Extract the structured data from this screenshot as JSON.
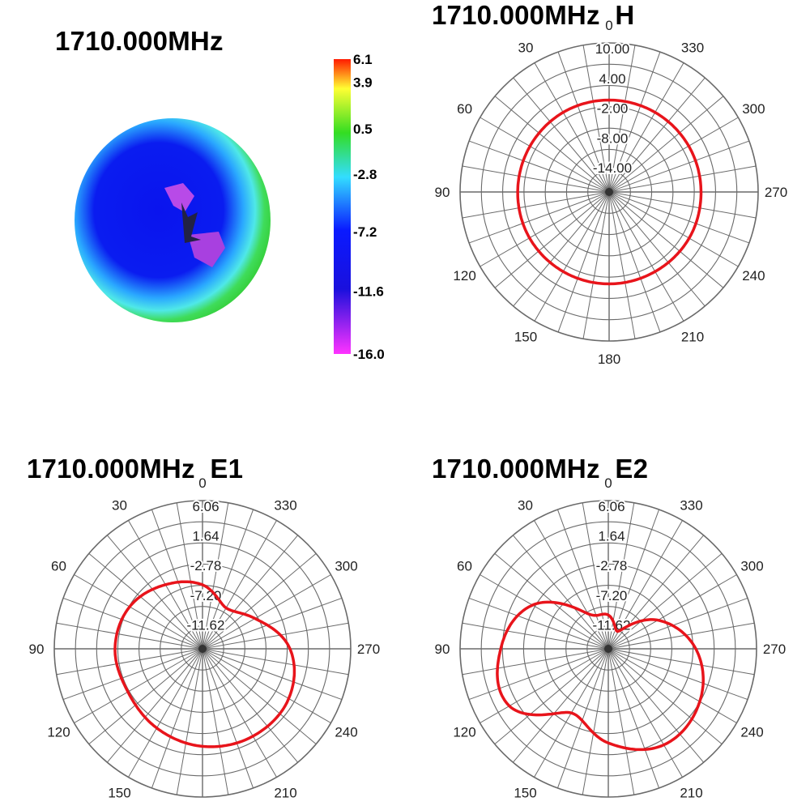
{
  "chart_data": [
    {
      "type": "heatmap",
      "title": "1710.000MHz",
      "colorbar": {
        "ticks": [
          "6.1",
          "3.9",
          "0.5",
          "-2.8",
          "-7.2",
          "-11.6",
          "-16.0"
        ],
        "range": [
          -16.0,
          6.1
        ],
        "colors": [
          "#ff2200",
          "#ffff33",
          "#33dd33",
          "#33ddff",
          "#0022ff",
          "#2200cc",
          "#ff33ff"
        ]
      }
    },
    {
      "type": "line",
      "title": "1710.000MHz  H",
      "angle_labels": [
        "180",
        "210",
        "240",
        "270",
        "300",
        "330",
        "0",
        "30",
        "60",
        "90",
        "120",
        "150"
      ],
      "radial_labels": [
        "10.00",
        "4.00",
        "-2.00",
        "-8.00",
        "-14.00"
      ],
      "rlim": [
        -20,
        10
      ],
      "x": [
        0,
        30,
        60,
        90,
        120,
        150,
        180,
        210,
        240,
        270,
        300,
        330,
        360
      ],
      "series": [
        {
          "values": [
            -1.5,
            -1.5,
            -1.6,
            -1.6,
            -1.5,
            -1.5,
            -1.5,
            -1.5,
            -1.4,
            -1.5,
            -1.5,
            -1.5,
            -1.5
          ],
          "color": "#e8141b"
        }
      ]
    },
    {
      "type": "line",
      "title": "1710.000MHz  E1",
      "angle_labels": [
        "180",
        "210",
        "240",
        "270",
        "300",
        "330",
        "0",
        "30",
        "60",
        "90",
        "120",
        "150"
      ],
      "radial_labels": [
        "6.06",
        "1.64",
        "-2.78",
        "-7.20",
        "-11.62"
      ],
      "rlim": [
        -16.04,
        6.06
      ],
      "x": [
        0,
        30,
        60,
        90,
        120,
        150,
        180,
        210,
        240,
        270,
        300,
        330,
        360
      ],
      "series": [
        {
          "values": [
            -6.5,
            -5.0,
            -3.5,
            -3.0,
            -3.2,
            -2.4,
            -1.5,
            -1.0,
            -1.2,
            -3.0,
            -7.0,
            -9.0,
            -6.5
          ],
          "color": "#e8141b"
        }
      ]
    },
    {
      "type": "line",
      "title": "1710.000MHz  E2",
      "angle_labels": [
        "180",
        "210",
        "240",
        "270",
        "300",
        "330",
        "0",
        "30",
        "60",
        "90",
        "120",
        "150"
      ],
      "radial_labels": [
        "6.06",
        "1.64",
        "-2.78",
        "-7.20",
        "-11.62"
      ],
      "rlim": [
        -16.04,
        6.06
      ],
      "x": [
        0,
        30,
        60,
        90,
        120,
        150,
        180,
        210,
        240,
        270,
        300,
        330,
        360
      ],
      "series": [
        {
          "values": [
            -11.0,
            -10.0,
            -3.0,
            0.0,
            1.0,
            -5.0,
            -2.0,
            0.5,
            -0.3,
            -3.0,
            -7.5,
            -13.0,
            -11.0
          ],
          "color": "#e8141b"
        }
      ]
    }
  ]
}
